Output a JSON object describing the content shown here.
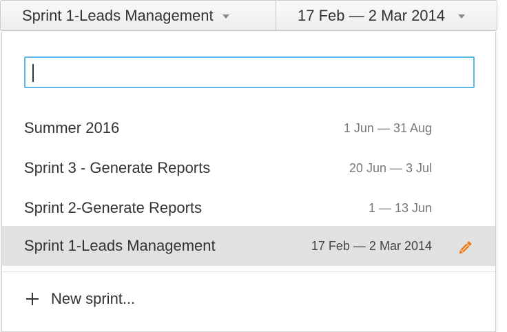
{
  "toolbar": {
    "sprint_label": "Sprint 1-Leads Management",
    "range_label": "17 Feb — 2 Mar 2014"
  },
  "search": {
    "value": "",
    "placeholder": ""
  },
  "sprints": [
    {
      "name": "Summer 2016",
      "dates": "1 Jun — 31 Aug",
      "selected": false
    },
    {
      "name": "Sprint 3 - Generate Reports",
      "dates": "20 Jun — 3 Jul",
      "selected": false
    },
    {
      "name": "Sprint 2-Generate Reports",
      "dates": "1 — 13 Jun",
      "selected": false
    },
    {
      "name": "Sprint 1-Leads Management",
      "dates": "17 Feb — 2 Mar 2014",
      "selected": true
    }
  ],
  "new_sprint_label": "New sprint...",
  "icons": {
    "caret": "chevron-down-icon",
    "edit": "pencil-icon",
    "add": "plus-icon"
  },
  "colors": {
    "focus_border": "#5bb8e6",
    "selected_row": "#e1e1e1",
    "pencil": "#f07a1a"
  }
}
